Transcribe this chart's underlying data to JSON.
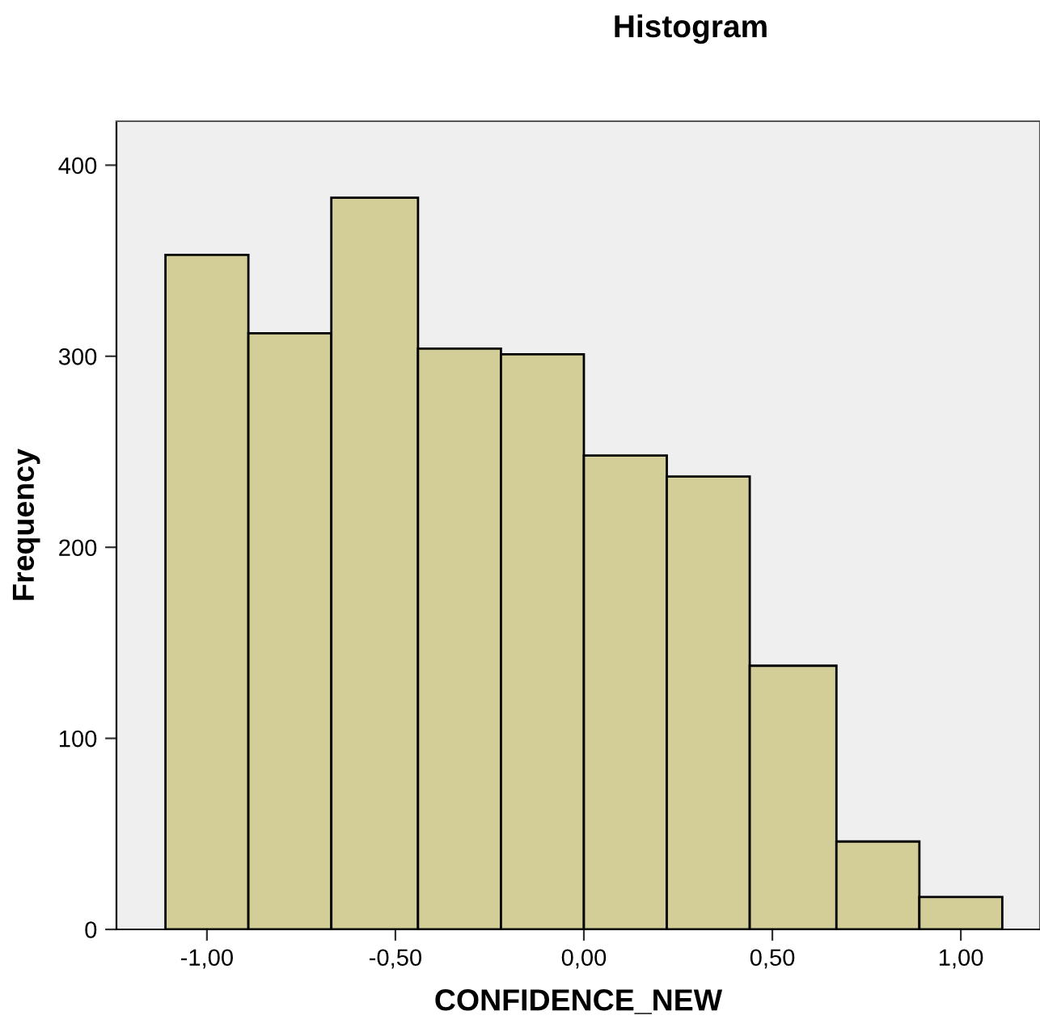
{
  "chart_data": {
    "type": "histogram",
    "title": "Histogram",
    "xlabel": "CONFIDENCE_NEW",
    "ylabel": "Frequency",
    "bins": [
      -1.11,
      -0.89,
      -0.67,
      -0.44,
      -0.22,
      0.0,
      0.22,
      0.44,
      0.67,
      0.89,
      1.11
    ],
    "values": [
      353,
      312,
      383,
      304,
      301,
      248,
      237,
      138,
      46,
      17
    ],
    "color": "#d3ce97",
    "xlim": [
      -1.24,
      1.21
    ],
    "xticks": [
      {
        "value": -1.0,
        "label": "-1,00"
      },
      {
        "value": -0.5,
        "label": "-0,50"
      },
      {
        "value": 0.0,
        "label": "0,00"
      },
      {
        "value": 0.5,
        "label": "0,50"
      },
      {
        "value": 1.0,
        "label": "1,00"
      }
    ],
    "ylim": [
      0,
      423
    ],
    "yticks": [
      0,
      100,
      200,
      300,
      400
    ],
    "grid": false,
    "legend": false
  }
}
